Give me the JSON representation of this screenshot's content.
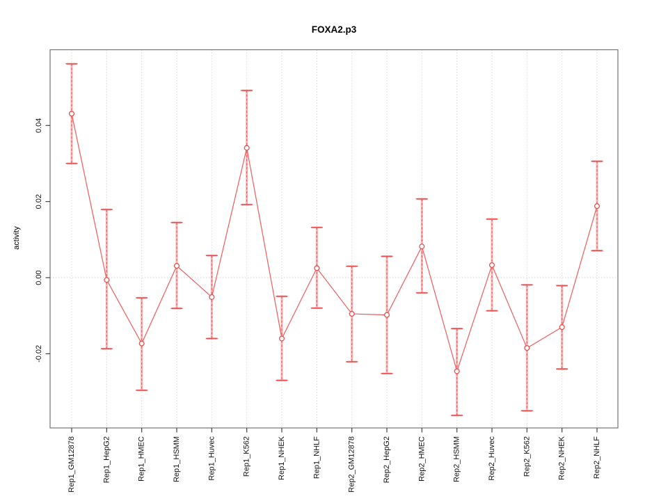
{
  "window": {
    "background": "#ffffff"
  },
  "chart_data": {
    "type": "line",
    "title": "FOXA2.p3",
    "xlabel": "",
    "ylabel": "activity",
    "legend": "none",
    "marker": "open-circle",
    "categories": [
      "Rep1_GM12878",
      "Rep1_HepG2",
      "Rep1_HMEC",
      "Rep1_HSMM",
      "Rep1_Huvec",
      "Rep1_K562",
      "Rep1_NHEK",
      "Rep1_NHLF",
      "Rep2_GM12878",
      "Rep2_HepG2",
      "Rep2_HMEC",
      "Rep2_HSMM",
      "Rep2_Huvec",
      "Rep2_K562",
      "Rep2_NHEK",
      "Rep2_NHLF"
    ],
    "series": [
      {
        "name": "activity",
        "values": [
          0.0431,
          -0.0006,
          -0.0173,
          0.0031,
          -0.0051,
          0.0341,
          -0.016,
          0.0025,
          -0.0095,
          -0.0098,
          0.0082,
          -0.0246,
          0.0033,
          -0.0185,
          -0.013,
          0.0188
        ],
        "err_high": [
          0.0562,
          0.0179,
          -0.0053,
          0.0145,
          0.0058,
          0.0492,
          -0.0049,
          0.0132,
          0.003,
          0.0056,
          0.0207,
          -0.0134,
          0.0154,
          -0.0019,
          -0.0021,
          0.0306
        ],
        "err_low": [
          0.03,
          -0.0187,
          -0.0296,
          -0.0081,
          -0.016,
          0.0192,
          -0.027,
          -0.008,
          -0.0221,
          -0.0252,
          -0.004,
          -0.0362,
          -0.0087,
          -0.035,
          -0.024,
          0.0071
        ]
      }
    ],
    "yticks": [
      -0.02,
      0,
      0.02,
      0.04
    ],
    "ytick_labels": [
      "-0.02",
      "0.00",
      "0.02",
      "0.04"
    ],
    "ylim": [
      -0.0395,
      0.0599
    ],
    "grid": {
      "vertical": "dashed gridline at each category",
      "horizontal": "dotted gridline at y = 0 only"
    },
    "colors": {
      "series": "#ef5a5a",
      "error_bar_inner": "#f7b5b5",
      "gridline": "#d9d9d9",
      "plot_border": "#737373"
    }
  }
}
